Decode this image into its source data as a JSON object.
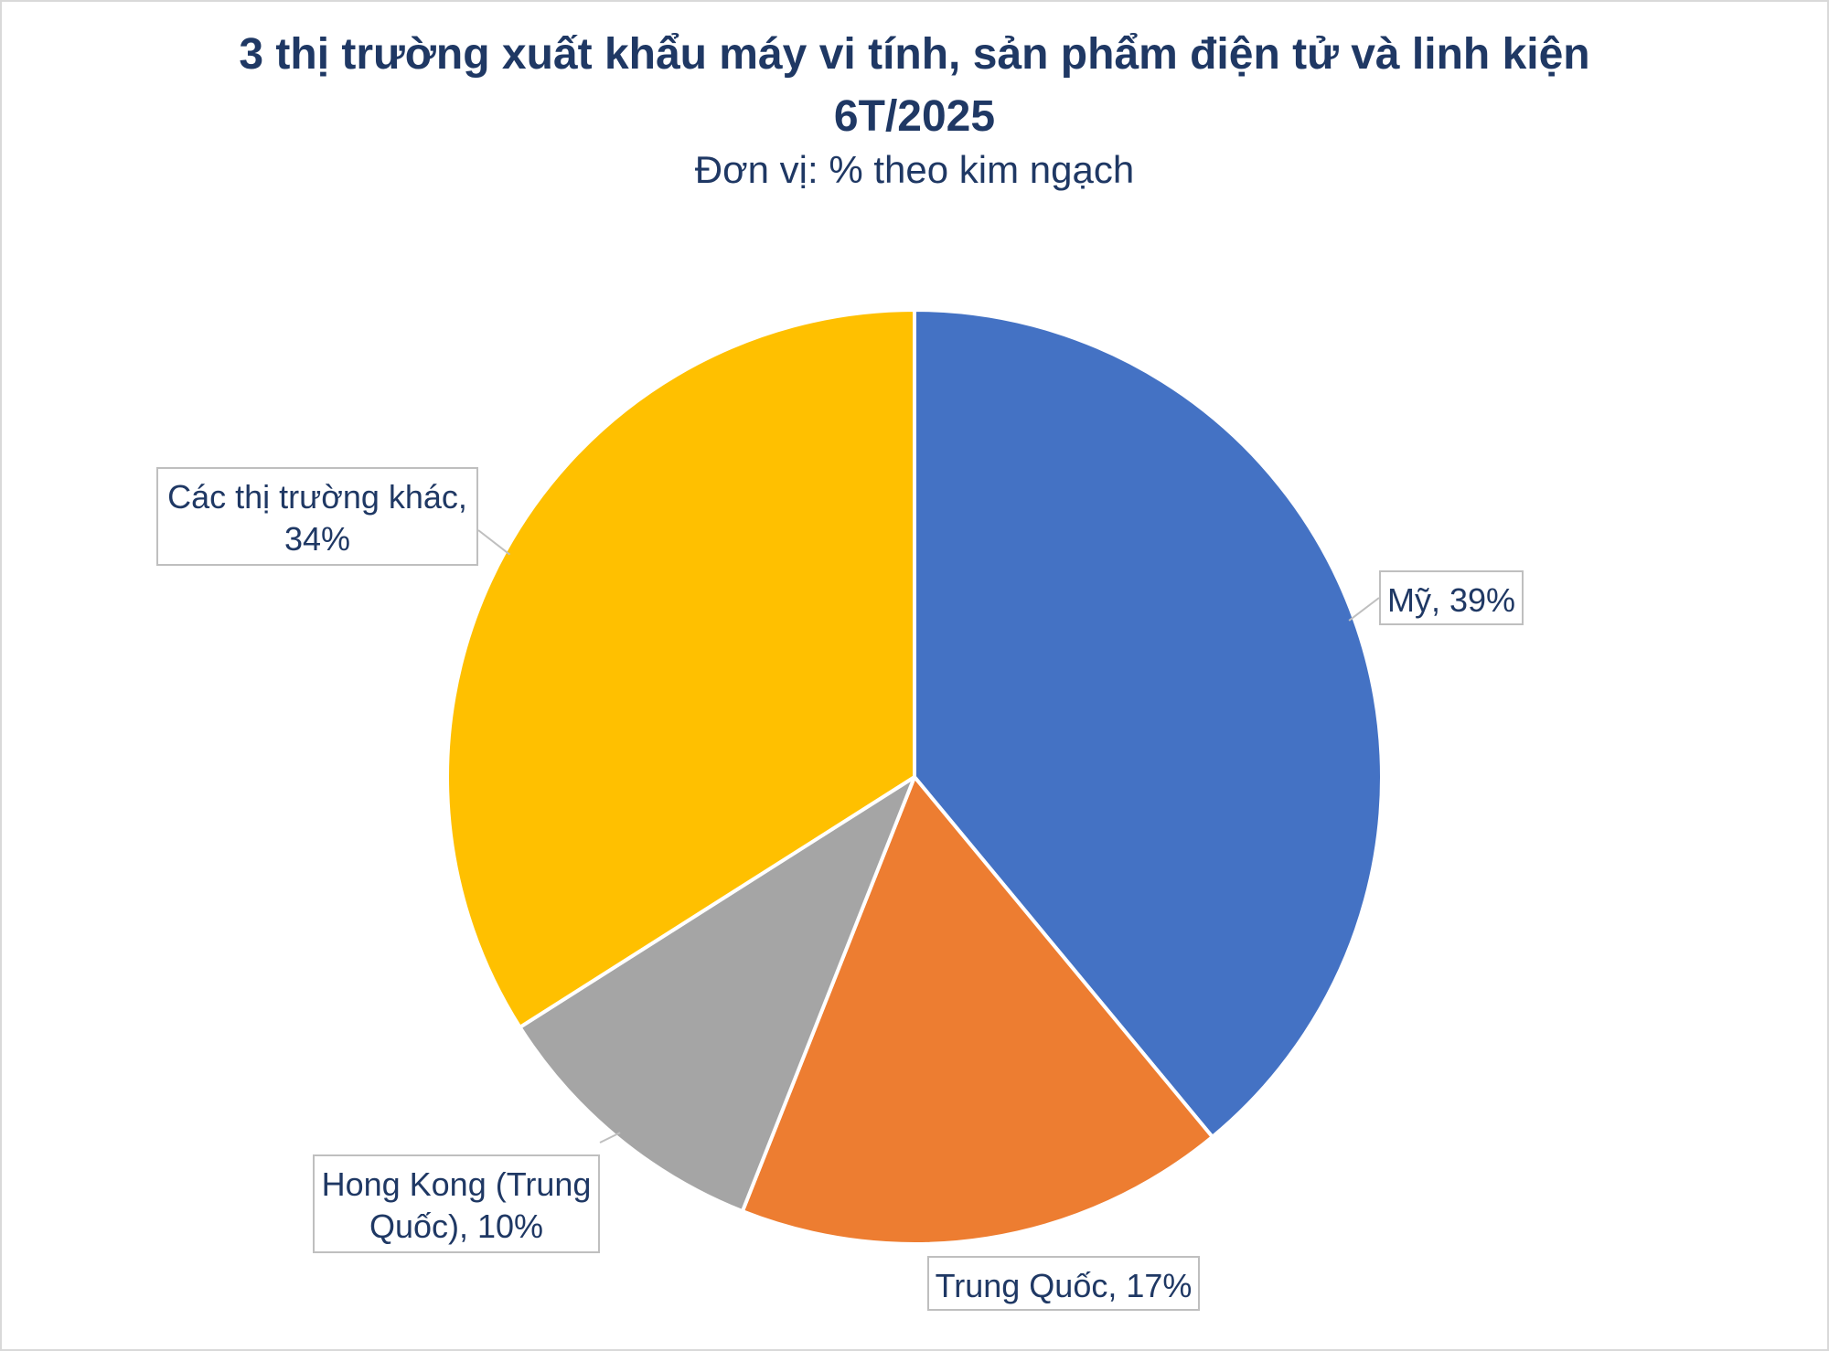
{
  "chart_data": {
    "type": "pie",
    "title_line1": "3 thị trường xuất khẩu máy vi tính, sản phẩm điện tử và linh kiện",
    "title_line2": "6T/2025",
    "subtitle": "Đơn vị: % theo kim ngạch",
    "categories": [
      "Mỹ",
      "Trung Quốc",
      "Hong Kong (Trung Quốc)",
      "Các thị trường khác"
    ],
    "values": [
      39,
      17,
      10,
      34
    ],
    "colors": [
      "#4472c4",
      "#ed7d31",
      "#a5a5a5",
      "#ffc000"
    ],
    "data_labels": [
      [
        "Mỹ, 39%"
      ],
      [
        "Trung Quốc, 17%"
      ],
      [
        "Hong Kong (Trung",
        "Quốc), 10%"
      ],
      [
        "Các thị trường khác,",
        "34%"
      ]
    ],
    "legend": "none"
  }
}
